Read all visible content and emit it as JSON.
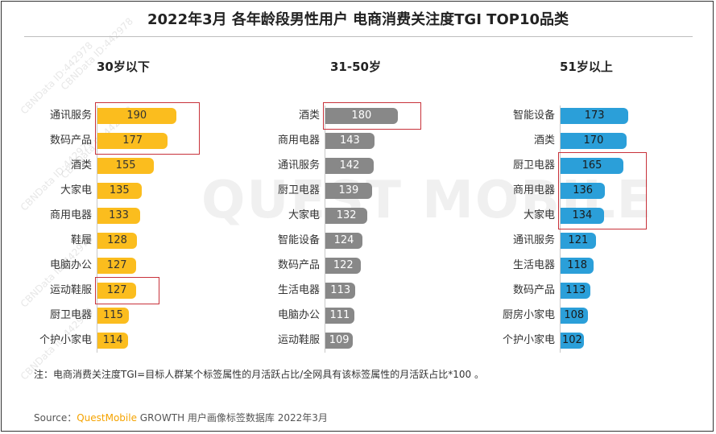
{
  "title": "2022年3月 各年龄段男性用户 电商消费关注度TGI TOP10品类",
  "note": "注：电商消费关注度TGI=目标人群某个标签属性的月活跃占比/全网具有该标签属性的月活跃占比*100 。",
  "source": {
    "prefix": "Source：",
    "brand": "QuestMobile",
    "suffix": " GROWTH 用户画像标签数据库 2022年3月"
  },
  "watermark": {
    "main": "QUEST MOBILE",
    "small": "CBNData ID:442978"
  },
  "colors": {
    "group1": "#fbbd1e",
    "group2": "#888888",
    "group3": "#2b9fd9",
    "highlight": "#c8323a"
  },
  "chart_data": [
    {
      "type": "bar",
      "orientation": "horizontal",
      "title": "30岁以下",
      "categories": [
        "通讯服务",
        "数码产品",
        "酒类",
        "大家电",
        "商用电器",
        "鞋履",
        "电脑办公",
        "运动鞋服",
        "厨卫电器",
        "个护小家电"
      ],
      "values": [
        190,
        177,
        155,
        135,
        133,
        128,
        127,
        127,
        115,
        114
      ],
      "highlighted": [
        [
          "通讯服务",
          "数码产品"
        ],
        [
          "运动鞋服"
        ]
      ]
    },
    {
      "type": "bar",
      "orientation": "horizontal",
      "title": "31-50岁",
      "categories": [
        "酒类",
        "商用电器",
        "通讯服务",
        "厨卫电器",
        "大家电",
        "智能设备",
        "数码产品",
        "生活电器",
        "电脑办公",
        "运动鞋服"
      ],
      "values": [
        180,
        143,
        142,
        139,
        132,
        124,
        122,
        113,
        111,
        109
      ],
      "highlighted": [
        [
          "酒类"
        ]
      ]
    },
    {
      "type": "bar",
      "orientation": "horizontal",
      "title": "51岁以上",
      "categories": [
        "智能设备",
        "酒类",
        "厨卫电器",
        "商用电器",
        "大家电",
        "通讯服务",
        "生活电器",
        "数码产品",
        "厨房小家电",
        "个护小家电"
      ],
      "values": [
        173,
        170,
        165,
        136,
        134,
        121,
        118,
        113,
        108,
        102
      ],
      "highlighted": [
        [
          "厨卫电器",
          "商用电器",
          "大家电"
        ]
      ]
    }
  ]
}
